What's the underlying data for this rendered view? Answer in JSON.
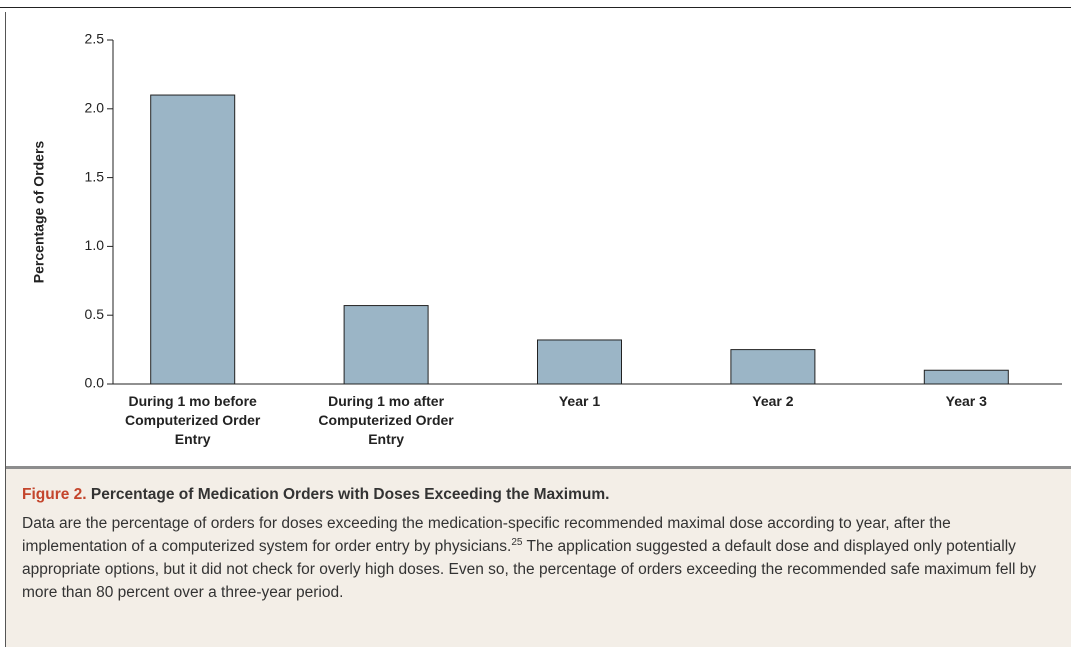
{
  "chart_data": {
    "type": "bar",
    "y_label": "Percentage of Orders",
    "categories": [
      "During 1 mo before Computerized Order Entry",
      "During 1 mo after Computerized Order Entry",
      "Year 1",
      "Year 2",
      "Year 3"
    ],
    "values": [
      2.1,
      0.57,
      0.32,
      0.25,
      0.1
    ],
    "color": "#9bb5c6",
    "ylim": [
      0,
      2.5
    ],
    "yticks": [
      {
        "value": 0,
        "label": "0.0"
      },
      0.5,
      {
        "value": 1,
        "label": "1.0"
      },
      1.5,
      {
        "value": 2,
        "label": "2.0"
      },
      2.5
    ],
    "grid": false
  },
  "caption": {
    "label": "Figure 2.",
    "title": "Percentage of Medication Orders with Doses Exceeding the Maximum.",
    "text_before": "Data are the percentage of orders for doses exceeding the medication-specific recommended maximal dose according to year, after the implementation of a computerized system for order entry by physicians.",
    "reference": "25",
    "text_after": " The application suggested a default dose and displayed only potentially appropriate options, but it did not check for overly high doses. Even so, the percentage of orders exceeding the recommended safe maximum fell by more than 80 percent over a three-year period."
  }
}
